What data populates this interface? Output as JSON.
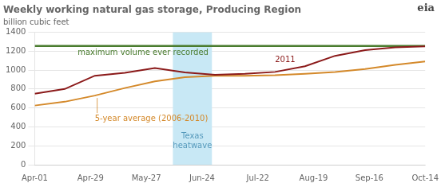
{
  "chart_data": {
    "type": "line",
    "title": "Weekly working natural gas storage, Producing Region",
    "ylabel": "billion cubic feet",
    "x": [
      0,
      1,
      2,
      3,
      4,
      5,
      6,
      7,
      8,
      9,
      10,
      11,
      12,
      13
    ],
    "xlim": [
      0,
      13
    ],
    "xticks": [
      {
        "value": 0,
        "label": "Apr-01"
      },
      {
        "value": 1.8571428571428572,
        "label": "Apr-29"
      },
      {
        "value": 3.7142857142857144,
        "label": "May-27"
      },
      {
        "value": 5.571428571428571,
        "label": "Jun-24"
      },
      {
        "value": 7.428571428571429,
        "label": "Jul-22"
      },
      {
        "value": 9.285714285714286,
        "label": "Aug-19"
      },
      {
        "value": 11.142857142857142,
        "label": "Sep-16"
      },
      {
        "value": 13,
        "label": "Oct-14"
      }
    ],
    "ylim": [
      0,
      1400
    ],
    "yticks": [
      0,
      200,
      400,
      600,
      800,
      1000,
      1200,
      1400
    ],
    "grid": "y",
    "legend": false,
    "series": [
      {
        "name": "2011",
        "color": "#8b1a1a",
        "values": [
          750,
          800,
          940,
          970,
          1020,
          975,
          950,
          960,
          980,
          1040,
          1150,
          1210,
          1240,
          1250
        ]
      },
      {
        "name": "5-year average (2006-2010)",
        "color": "#d4892a",
        "values": [
          625,
          665,
          730,
          810,
          880,
          925,
          940,
          940,
          945,
          960,
          980,
          1010,
          1055,
          1090
        ]
      }
    ],
    "reference_lines": [
      {
        "y": 1255,
        "label": "maximum volume ever recorded",
        "color": "#4a7c2f"
      }
    ],
    "shaded_regions": [
      {
        "x_start": 4.6,
        "x_end": 5.9,
        "label": "Texas\nheatwave",
        "color": "#c8e8f5",
        "label_color": "#5599bb"
      }
    ],
    "annotations": [
      {
        "text": "eia"
      }
    ]
  }
}
